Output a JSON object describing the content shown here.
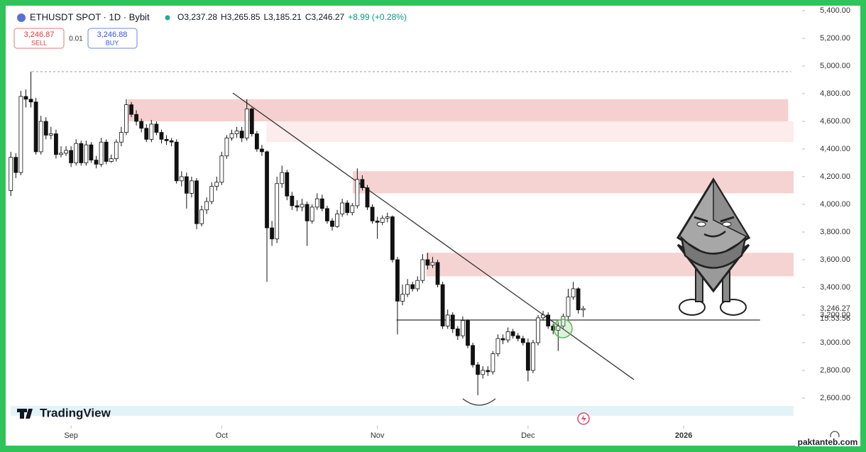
{
  "chart_data": {
    "type": "candlestick",
    "title": "ETHUSDT SPOT · 1D · Bybit",
    "ohlc_legend": [
      "O3,237.28",
      "H3,265.85",
      "L3,185.21",
      "C3,246.27",
      "+8.99 (+0.28%)"
    ],
    "sell": {
      "price": "3,246.87",
      "label": "SELL"
    },
    "spread": "0.01",
    "buy": {
      "price": "3,246.88",
      "label": "BUY"
    },
    "brand": "TradingView",
    "watermark": "paktanteb.com",
    "last_price": {
      "value": 3246.27,
      "label": "3,246.27"
    },
    "countdown": "15:53:56",
    "up_color": "#ffffff",
    "down_color": "#111111",
    "open": [
      4100,
      4340,
      4230,
      4780,
      4760,
      4740,
      4380,
      4600,
      4500,
      4510,
      4360,
      4370,
      4390,
      4300,
      4440,
      4300,
      4430,
      4320,
      4290,
      4450,
      4310,
      4330,
      4450,
      4520,
      4720,
      4650,
      4600,
      4550,
      4470,
      4580,
      4520,
      4470,
      4460,
      4450,
      4170,
      4200,
      4080,
      4170,
      3860,
      3960,
      4020,
      4130,
      4160,
      4350,
      4480,
      4510,
      4530,
      4480,
      4690,
      4510,
      4400,
      4380,
      3830,
      3750,
      4150,
      4230,
      4060,
      3990,
      3980,
      4000,
      3880,
      3980,
      4040,
      3970,
      3880,
      3840,
      3930,
      4010,
      3940,
      3990,
      4180,
      4120,
      3980,
      3880,
      3870,
      3900,
      3910,
      3600,
      3300,
      3350,
      3420,
      3390,
      3450,
      3600,
      3560,
      3580,
      3420,
      3120,
      3200,
      3100,
      3050,
      3160,
      2980,
      2840,
      2770,
      2800,
      2790,
      2920,
      3030,
      3020,
      3080,
      3050,
      3030,
      3000,
      2800,
      3000,
      3180,
      3200,
      3120,
      3090,
      3120,
      3190,
      3330,
      3390,
      3237.28
    ],
    "high": [
      4380,
      4370,
      4820,
      4830,
      4960,
      4770,
      4640,
      4630,
      4560,
      4540,
      4420,
      4420,
      4420,
      4470,
      4460,
      4460,
      4450,
      4350,
      4480,
      4470,
      4360,
      4470,
      4560,
      4760,
      4740,
      4680,
      4620,
      4580,
      4610,
      4600,
      4540,
      4500,
      4480,
      4470,
      4240,
      4230,
      4200,
      4190,
      3990,
      4050,
      4160,
      4200,
      4380,
      4500,
      4540,
      4560,
      4560,
      4760,
      4700,
      4530,
      4430,
      4390,
      3880,
      4200,
      4280,
      4250,
      4090,
      4030,
      4040,
      4020,
      4000,
      4080,
      4070,
      3990,
      3900,
      3960,
      4040,
      4030,
      4010,
      4260,
      4210,
      4140,
      4000,
      3910,
      3920,
      3940,
      3920,
      3620,
      3420,
      3460,
      3440,
      3480,
      3640,
      3650,
      3620,
      3600,
      3440,
      3240,
      3220,
      3120,
      3190,
      3170,
      3000,
      2860,
      2830,
      2830,
      2940,
      3060,
      3060,
      3110,
      3100,
      3070,
      3050,
      3030,
      3020,
      3200,
      3230,
      3220,
      3140,
      3150,
      3210,
      3390,
      3440,
      3400,
      3265.85
    ],
    "low": [
      4060,
      4190,
      4210,
      4700,
      4700,
      4360,
      4360,
      4470,
      4470,
      4330,
      4340,
      4350,
      4270,
      4280,
      4280,
      4280,
      4300,
      4260,
      4270,
      4290,
      4300,
      4310,
      4420,
      4500,
      4630,
      4570,
      4520,
      4450,
      4450,
      4500,
      4440,
      4430,
      4420,
      4150,
      4130,
      3970,
      4050,
      3820,
      3840,
      3930,
      4000,
      4100,
      4140,
      4330,
      4460,
      4480,
      4450,
      4460,
      4490,
      4380,
      4350,
      3440,
      3700,
      3720,
      4120,
      4030,
      3960,
      3950,
      3950,
      3700,
      3860,
      3960,
      3950,
      3860,
      3810,
      3830,
      3910,
      3920,
      3920,
      3970,
      4100,
      3960,
      3860,
      3750,
      3850,
      3870,
      3580,
      3060,
      3270,
      3330,
      3370,
      3370,
      3430,
      3530,
      3540,
      3400,
      3100,
      3100,
      3070,
      3020,
      3030,
      2960,
      2820,
      2620,
      2740,
      2760,
      2770,
      2900,
      2990,
      3000,
      3030,
      3010,
      2980,
      2720,
      2780,
      2980,
      3160,
      3100,
      3060,
      2940,
      3100,
      3170,
      3310,
      3210,
      3185.21
    ],
    "close": [
      4340,
      4230,
      4780,
      4760,
      4740,
      4380,
      4600,
      4500,
      4510,
      4360,
      4370,
      4390,
      4300,
      4440,
      4300,
      4430,
      4320,
      4290,
      4450,
      4310,
      4330,
      4450,
      4520,
      4720,
      4650,
      4600,
      4550,
      4470,
      4580,
      4520,
      4470,
      4460,
      4450,
      4170,
      4200,
      4080,
      4170,
      3860,
      3960,
      4020,
      4130,
      4160,
      4350,
      4480,
      4510,
      4530,
      4480,
      4690,
      4510,
      4400,
      4380,
      3830,
      3750,
      4150,
      4230,
      4060,
      3990,
      3980,
      4000,
      3880,
      3980,
      4040,
      3970,
      3880,
      3840,
      3930,
      4010,
      3940,
      3990,
      4180,
      4120,
      3980,
      3880,
      3870,
      3900,
      3910,
      3600,
      3300,
      3350,
      3420,
      3390,
      3450,
      3600,
      3560,
      3580,
      3420,
      3120,
      3200,
      3100,
      3050,
      3160,
      2980,
      2840,
      2770,
      2800,
      2790,
      2920,
      3030,
      3020,
      3080,
      3050,
      3030,
      3000,
      2800,
      3000,
      3180,
      3200,
      3120,
      3090,
      3120,
      3190,
      3330,
      3390,
      3237.28,
      3246.27
    ],
    "xlim": [
      -0.6,
      157.3
    ],
    "xticks": [
      {
        "value": 12,
        "label": "Sep"
      },
      {
        "value": 42,
        "label": "Oct"
      },
      {
        "value": 73,
        "label": "Nov"
      },
      {
        "value": 103,
        "label": "Dec"
      },
      {
        "value": 134,
        "label": "2026"
      }
    ],
    "ylim": [
      2410,
      5436
    ],
    "yticks": [
      {
        "value": 2600,
        "label": "2,600.00"
      },
      {
        "value": 2800,
        "label": "2,800.00"
      },
      {
        "value": 3000,
        "label": "3,000.00"
      },
      {
        "value": 3200,
        "label": "3,200.00"
      },
      {
        "value": 3400,
        "label": "3,400.00"
      },
      {
        "value": 3600,
        "label": "3,600.00"
      },
      {
        "value": 3800,
        "label": "3,800.00"
      },
      {
        "value": 4000,
        "label": "4,000.00"
      },
      {
        "value": 4200,
        "label": "4,200.00"
      },
      {
        "value": 4400,
        "label": "4,400.00"
      },
      {
        "value": 4600,
        "label": "4,600.00"
      },
      {
        "value": 4800,
        "label": "4,800.00"
      },
      {
        "value": 5000,
        "label": "5,000.00"
      },
      {
        "value": 5200,
        "label": "5,200.00"
      },
      {
        "value": 5400,
        "label": "5,400.00"
      }
    ],
    "zones": [
      {
        "from": 4600,
        "to": 4760,
        "start": 23.3,
        "end": 154.8,
        "color": "#f6d0d0"
      },
      {
        "from": 4450,
        "to": 4600,
        "start": 50.9,
        "end": 155.9,
        "color": "#fcecec"
      },
      {
        "from": 4080,
        "to": 4240,
        "start": 68.1,
        "end": 155.9,
        "color": "#f6d3d3"
      },
      {
        "from": 3480,
        "to": 3650,
        "start": 82.7,
        "end": 155.9,
        "color": "#f6d3d3"
      }
    ],
    "trendline": {
      "x": [
        44.2,
        124.1
      ],
      "y": [
        4805,
        2733
      ],
      "color": "#333333"
    },
    "support": {
      "value": 3164,
      "start": 76.8,
      "end": 149.2,
      "color": "#333333"
    },
    "high_marker": {
      "value": 4959,
      "start": 4.2,
      "end": 155.4,
      "color": "#9a9a9a"
    }
  }
}
